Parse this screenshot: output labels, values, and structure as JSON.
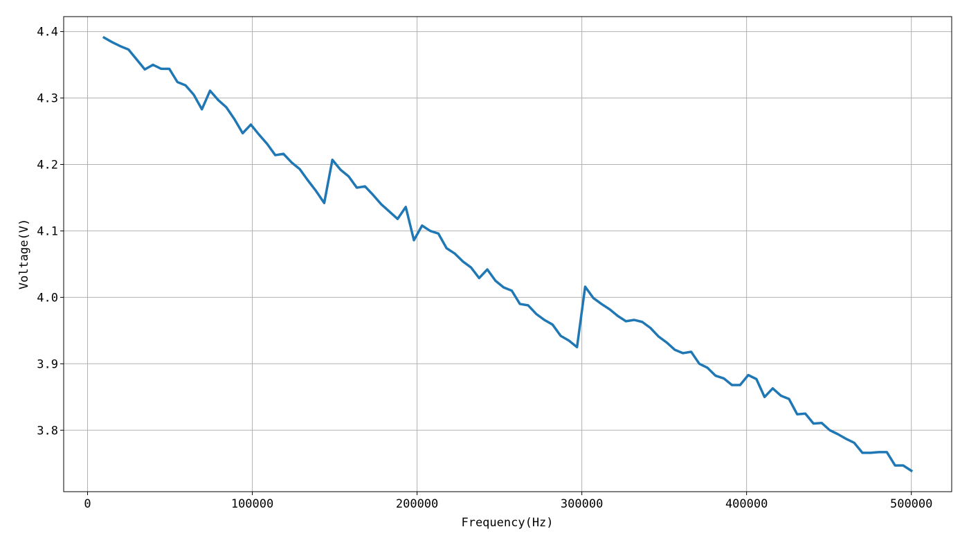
{
  "chart_data": {
    "type": "line",
    "xlabel": "Frequency(Hz)",
    "ylabel": "Voltage(V)",
    "x": [
      10000,
      14949,
      19899,
      24848,
      29798,
      34747,
      39697,
      44646,
      49596,
      54545,
      59495,
      64444,
      69394,
      74343,
      79293,
      84242,
      89192,
      94141,
      99091,
      104040,
      108990,
      113939,
      118889,
      123838,
      128788,
      133737,
      138687,
      143636,
      148586,
      153535,
      158485,
      163434,
      168384,
      173333,
      178283,
      183232,
      188182,
      193131,
      198081,
      203030,
      207980,
      212929,
      217879,
      222828,
      227778,
      232727,
      237677,
      242626,
      247576,
      252525,
      257475,
      262424,
      267374,
      272323,
      277273,
      282222,
      287172,
      292121,
      297071,
      302020,
      306970,
      311919,
      316869,
      321818,
      326768,
      331717,
      336667,
      341616,
      346566,
      351515,
      356465,
      361414,
      366364,
      371313,
      376263,
      381212,
      386162,
      391111,
      396061,
      401010,
      405960,
      410909,
      415859,
      420808,
      425758,
      430707,
      435657,
      440606,
      445556,
      450505,
      455455,
      460404,
      465354,
      470303,
      475253,
      480202,
      485152,
      490101,
      495051,
      500000
    ],
    "series": [
      {
        "color": "#1f77b4",
        "values": [
          4.391,
          4.384,
          4.378,
          4.373,
          4.358,
          4.343,
          4.35,
          4.344,
          4.344,
          4.324,
          4.319,
          4.305,
          4.283,
          4.311,
          4.297,
          4.286,
          4.268,
          4.247,
          4.26,
          4.245,
          4.231,
          4.214,
          4.216,
          4.203,
          4.193,
          4.176,
          4.16,
          4.142,
          4.207,
          4.192,
          4.182,
          4.165,
          4.167,
          4.154,
          4.14,
          4.129,
          4.118,
          4.136,
          4.086,
          4.108,
          4.1,
          4.096,
          4.074,
          4.066,
          4.054,
          4.045,
          4.029,
          4.042,
          4.025,
          4.015,
          4.01,
          3.99,
          3.988,
          3.975,
          3.966,
          3.959,
          3.942,
          3.935,
          3.925,
          4.016,
          3.999,
          3.99,
          3.982,
          3.972,
          3.964,
          3.966,
          3.963,
          3.954,
          3.941,
          3.932,
          3.921,
          3.916,
          3.918,
          3.9,
          3.894,
          3.882,
          3.878,
          3.868,
          3.868,
          3.883,
          3.877,
          3.85,
          3.863,
          3.852,
          3.847,
          3.824,
          3.825,
          3.81,
          3.811,
          3.8,
          3.794,
          3.787,
          3.781,
          3.766,
          3.766,
          3.767,
          3.767,
          3.747,
          3.747,
          3.739
        ]
      }
    ],
    "xlim": [
      -14500,
      524500
    ],
    "ylim": [
      3.7075,
      4.4225
    ],
    "xticks": [
      0,
      100000,
      200000,
      300000,
      400000,
      500000
    ],
    "yticks": [
      3.8,
      3.9,
      {
        "value": 4,
        "label": "4.0"
      },
      4.1,
      4.2,
      4.3,
      4.4
    ],
    "grid": true
  }
}
